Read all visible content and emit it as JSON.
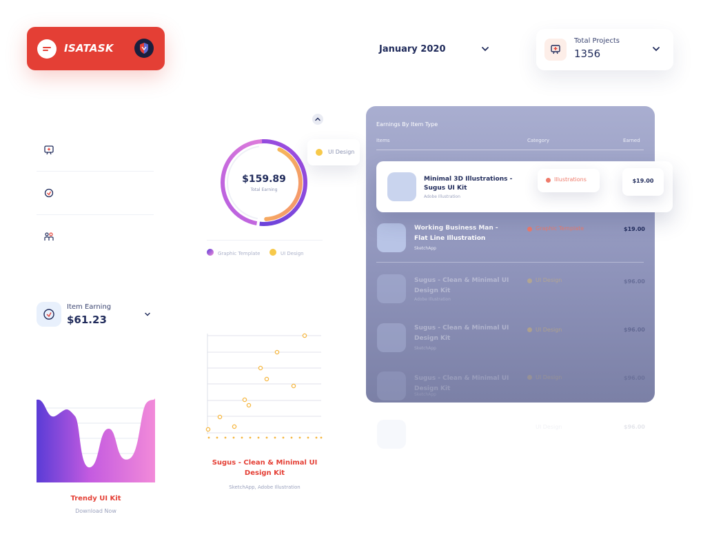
{
  "brand": {
    "name": "ISATASK"
  },
  "header": {
    "month": "January 2020",
    "projects_label": "Total Projects",
    "projects_value": "1356"
  },
  "item_earning": {
    "label": "Item Earning",
    "value": "$61.23"
  },
  "trendy": {
    "title": "Trendy UI Kit",
    "subtitle": "Download Now"
  },
  "donut": {
    "value": "$159.89",
    "subtitle": "Total Earning",
    "tag": "UI Design",
    "legend": [
      {
        "label": "Graphic Template",
        "color": "#8e4fd6"
      },
      {
        "label": "UI Design",
        "color": "#f7c94a"
      }
    ]
  },
  "sugus": {
    "title": "Sugus - Clean & Minimal UI Design Kit",
    "subtitle": "SketchApp, Adobe Illustration"
  },
  "table": {
    "title": "Earnings By Item Type",
    "columns": [
      "Items",
      "Category",
      "Earned"
    ],
    "highlight": {
      "name": "Minimal 3D Illustrations - Sugus UI Kit",
      "sub": "Adobe Illustration",
      "category": "Illustrations",
      "earned": "$19.00"
    },
    "rows": [
      {
        "name": "Working Business Man - Flat Line Illustration",
        "sub": "SketchApp",
        "category": "Graphic Template",
        "category_color": "#ef7a6a",
        "earned": "$19.00"
      },
      {
        "name": "Sugus - Clean & Minimal UI Design Kit",
        "sub": "Adobe Illustration",
        "category": "UI Design",
        "category_color": "#f7c94a",
        "earned": "$96.00"
      },
      {
        "name": "Sugus - Clean & Minimal UI Design Kit",
        "sub": "SketchApp",
        "category": "UI Design",
        "category_color": "#f7c94a",
        "earned": "$96.00"
      },
      {
        "name": "Sugus - Clean & Minimal UI Design Kit",
        "sub": "SketchApp",
        "category": "UI Design",
        "category_color": "#f7c94a",
        "earned": "$96.00"
      }
    ],
    "ghost": {
      "category": "UI Design",
      "earned": "$96.00"
    }
  },
  "colors": {
    "accent": "#e43f35",
    "navy": "#1f2a5a",
    "card": "#9ea3c8"
  }
}
